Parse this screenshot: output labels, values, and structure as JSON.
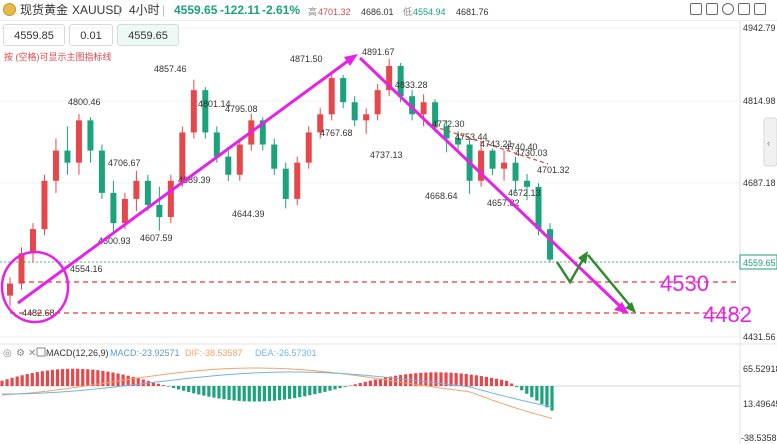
{
  "header": {
    "name": "现货黄金",
    "symbol": "XAUUSD",
    "sep": "|",
    "period": "4小时",
    "price": "4559.65",
    "change": "-122.11",
    "change_pct": "-2.61%",
    "high_label": "高",
    "high": "4701.32",
    "open": "4686.01",
    "low_label": "低",
    "low": "4554.94",
    "close": "4681.76"
  },
  "trade": {
    "sell_price": "4559.85",
    "lot": "0.01",
    "buy_price": "4559.65",
    "hint": "按 (空格)可显示主图指标线"
  },
  "colors": {
    "up": "#e5474b",
    "down": "#1ba37b",
    "magenta": "#e523e5",
    "arrow_green": "#2e8b2e",
    "red_line": "#e23b3b",
    "dif": "#f4a36a",
    "dea": "#74b4e4"
  },
  "price_axis": [
    "4942.79",
    "4814.98",
    "4687.18",
    "4559.65",
    "4431.56"
  ],
  "current_price_tag": "4559.65",
  "big_labels": [
    "4530",
    "4482"
  ],
  "annotations": [
    "4891.67",
    "4871.50",
    "4857.46",
    "4833.28",
    "4800.46",
    "4801.14",
    "4795.08",
    "4772.30",
    "4767.68",
    "4753.44",
    "4743.21",
    "4740.40",
    "4737.13",
    "4730.03",
    "4706.67",
    "4701.32",
    "4689.39",
    "4672.13",
    "4668.64",
    "4657.82",
    "4644.39",
    "4607.59",
    "4600.93",
    "4554.16",
    "4482.68"
  ],
  "macd": {
    "label": "MACD(12,26,9)",
    "macd_text": "MACD:-23.92571",
    "dif_text": "DIF:-38.53587",
    "dea_text": "DEA:-26.57301",
    "axis": [
      "65.52918",
      "13.49645",
      "-38.53587"
    ]
  },
  "chart_data": {
    "type": "candlestick",
    "title": "XAUUSD 4小时",
    "y_range": [
      4431.56,
      4942.79
    ],
    "support_levels": [
      4530,
      4482
    ],
    "candles": [
      [
        4500,
        4530,
        4482.68,
        4520
      ],
      [
        4520,
        4580,
        4510,
        4570
      ],
      [
        4570,
        4620,
        4555,
        4610
      ],
      [
        4610,
        4700,
        4600,
        4690
      ],
      [
        4690,
        4760,
        4670,
        4740
      ],
      [
        4740,
        4780,
        4700,
        4720
      ],
      [
        4720,
        4800.46,
        4700,
        4790
      ],
      [
        4790,
        4795,
        4720,
        4740
      ],
      [
        4740,
        4750,
        4660,
        4670
      ],
      [
        4670,
        4690,
        4600.93,
        4620
      ],
      [
        4620,
        4670,
        4610,
        4660
      ],
      [
        4660,
        4706.67,
        4640,
        4690
      ],
      [
        4690,
        4700,
        4640,
        4650
      ],
      [
        4650,
        4680,
        4607.59,
        4630
      ],
      [
        4630,
        4700,
        4620,
        4690
      ],
      [
        4690,
        4780,
        4680,
        4770
      ],
      [
        4770,
        4857.46,
        4760,
        4840
      ],
      [
        4840,
        4845,
        4760,
        4770
      ],
      [
        4770,
        4780,
        4720,
        4730
      ],
      [
        4730,
        4740,
        4689.39,
        4700
      ],
      [
        4700,
        4760,
        4690,
        4750
      ],
      [
        4750,
        4801.14,
        4740,
        4790
      ],
      [
        4790,
        4795.08,
        4740,
        4750
      ],
      [
        4750,
        4760,
        4700,
        4710
      ],
      [
        4710,
        4720,
        4644.39,
        4660
      ],
      [
        4660,
        4730,
        4650,
        4720
      ],
      [
        4720,
        4780,
        4710,
        4770
      ],
      [
        4770,
        4810,
        4760,
        4800
      ],
      [
        4800,
        4871.5,
        4790,
        4860
      ],
      [
        4860,
        4865,
        4810,
        4820
      ],
      [
        4820,
        4830,
        4780,
        4790
      ],
      [
        4790,
        4810,
        4767.68,
        4800
      ],
      [
        4800,
        4850,
        4790,
        4840
      ],
      [
        4840,
        4891.67,
        4830,
        4880
      ],
      [
        4880,
        4885,
        4820,
        4830
      ],
      [
        4830,
        4840,
        4790,
        4800
      ],
      [
        4800,
        4833.28,
        4780,
        4820
      ],
      [
        4820,
        4825,
        4770,
        4780
      ],
      [
        4780,
        4790,
        4737.13,
        4760
      ],
      [
        4760,
        4772.3,
        4740,
        4750
      ],
      [
        4750,
        4760,
        4668.64,
        4690
      ],
      [
        4690,
        4753.44,
        4680,
        4740
      ],
      [
        4740,
        4743.21,
        4700,
        4710
      ],
      [
        4710,
        4740.4,
        4690,
        4720
      ],
      [
        4720,
        4730.03,
        4672.13,
        4690
      ],
      [
        4690,
        4701.32,
        4657.82,
        4680
      ],
      [
        4680,
        4686,
        4600,
        4610
      ],
      [
        4610,
        4620,
        4554.94,
        4559.65
      ]
    ]
  }
}
